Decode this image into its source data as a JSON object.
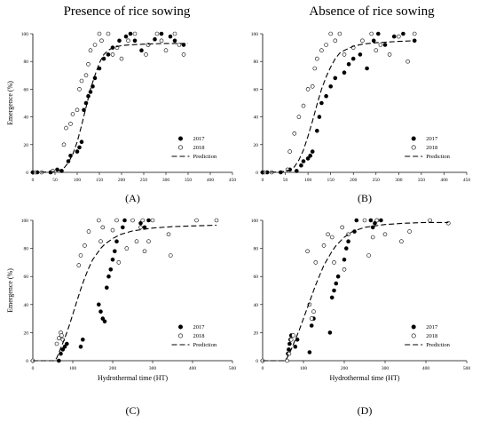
{
  "headers": {
    "left": "Presence of rice sowing",
    "right": "Absence of rice sowing"
  },
  "legend": {
    "s2017": "2017",
    "s2018": "2018",
    "prediction": "Prediction"
  },
  "chart_data": [
    {
      "type": "scatter",
      "panel": "(A)",
      "ylabel": "Emergence (%)",
      "xlabel": "",
      "xlim": [
        0,
        450
      ],
      "ylim": [
        0,
        100
      ],
      "xticks": [
        0,
        50,
        100,
        150,
        200,
        250,
        300,
        350,
        400,
        450
      ],
      "yticks": [
        0,
        20,
        40,
        60,
        80,
        100
      ],
      "grid": false,
      "legend_position": "right-bottom",
      "series": [
        {
          "name": "2017",
          "marker": "filled-circle",
          "x": [
            0,
            10,
            40,
            55,
            65,
            80,
            85,
            100,
            105,
            110,
            115,
            120,
            125,
            130,
            135,
            140,
            150,
            160,
            170,
            180,
            195,
            210,
            220,
            230,
            245,
            260,
            275,
            290,
            310,
            320,
            340
          ],
          "y": [
            0,
            0,
            0,
            2,
            1,
            8,
            12,
            15,
            18,
            22,
            45,
            50,
            55,
            58,
            62,
            68,
            75,
            82,
            85,
            90,
            95,
            98,
            100,
            95,
            88,
            92,
            96,
            100,
            98,
            95,
            92
          ]
        },
        {
          "name": "2018",
          "marker": "open-circle",
          "x": [
            5,
            20,
            45,
            70,
            75,
            85,
            90,
            100,
            105,
            110,
            120,
            125,
            130,
            140,
            150,
            155,
            170,
            180,
            190,
            200,
            215,
            230,
            255,
            260,
            280,
            290,
            300,
            320,
            330,
            340
          ],
          "y": [
            0,
            0,
            1,
            20,
            32,
            35,
            42,
            45,
            60,
            66,
            70,
            78,
            88,
            92,
            100,
            95,
            100,
            85,
            90,
            82,
            95,
            100,
            85,
            92,
            100,
            95,
            88,
            100,
            92,
            85
          ]
        },
        {
          "name": "Prediction",
          "line": "dashed",
          "x": [
            0,
            30,
            50,
            60,
            70,
            80,
            90,
            100,
            110,
            120,
            130,
            140,
            150,
            160,
            170,
            180,
            200,
            220,
            250,
            300,
            350
          ],
          "y": [
            0,
            0.2,
            0.8,
            1.5,
            3,
            7,
            13,
            22,
            34,
            47,
            60,
            70,
            79,
            85,
            88,
            90,
            91.5,
            92,
            92.5,
            93,
            93
          ]
        }
      ]
    },
    {
      "type": "scatter",
      "panel": "(B)",
      "ylabel": "",
      "xlabel": "",
      "xlim": [
        0,
        450
      ],
      "ylim": [
        0,
        100
      ],
      "xticks": [
        0,
        50,
        100,
        150,
        200,
        250,
        300,
        350,
        400,
        450
      ],
      "yticks": [
        0,
        20,
        40,
        60,
        80,
        100
      ],
      "grid": false,
      "legend_position": "right-bottom",
      "series": [
        {
          "name": "2017",
          "marker": "filled-circle",
          "x": [
            0,
            10,
            40,
            60,
            75,
            85,
            90,
            100,
            105,
            110,
            120,
            125,
            130,
            140,
            150,
            160,
            180,
            190,
            200,
            215,
            230,
            245,
            255,
            270,
            290,
            310,
            335
          ],
          "y": [
            0,
            0,
            0,
            2,
            1,
            5,
            8,
            10,
            12,
            15,
            30,
            40,
            50,
            55,
            62,
            68,
            72,
            78,
            82,
            85,
            75,
            95,
            100,
            92,
            98,
            100,
            95
          ]
        },
        {
          "name": "2018",
          "marker": "open-circle",
          "x": [
            5,
            20,
            55,
            60,
            70,
            80,
            90,
            100,
            110,
            115,
            120,
            130,
            140,
            150,
            160,
            170,
            180,
            200,
            220,
            240,
            250,
            260,
            280,
            300,
            320,
            335
          ],
          "y": [
            0,
            0,
            2,
            15,
            28,
            40,
            48,
            60,
            62,
            75,
            82,
            88,
            92,
            100,
            95,
            100,
            85,
            90,
            95,
            100,
            88,
            92,
            85,
            98,
            80,
            100
          ]
        },
        {
          "name": "Prediction",
          "line": "dashed",
          "x": [
            0,
            30,
            50,
            60,
            70,
            80,
            90,
            100,
            110,
            120,
            130,
            140,
            150,
            160,
            170,
            180,
            200,
            220,
            250,
            300,
            335
          ],
          "y": [
            0,
            0.2,
            0.8,
            2,
            4,
            9,
            16,
            26,
            37,
            49,
            60,
            69,
            76,
            82,
            86,
            88,
            91,
            92.5,
            93.5,
            94.5,
            95
          ]
        }
      ]
    },
    {
      "type": "scatter",
      "panel": "(C)",
      "ylabel": "Emergence (%)",
      "xlabel": "Hydrothermal time (HT)",
      "xlim": [
        0,
        500
      ],
      "ylim": [
        0,
        100
      ],
      "xticks": [
        0,
        100,
        200,
        300,
        400,
        500
      ],
      "yticks": [
        0,
        20,
        40,
        60,
        80,
        100
      ],
      "grid": false,
      "legend_position": "right-bottom",
      "series": [
        {
          "name": "2017",
          "marker": "filled-circle",
          "x": [
            65,
            70,
            75,
            80,
            85,
            120,
            125,
            165,
            170,
            175,
            180,
            185,
            190,
            195,
            200,
            205,
            210,
            225,
            230,
            270,
            280,
            290
          ],
          "y": [
            0,
            5,
            8,
            10,
            12,
            10,
            15,
            40,
            35,
            30,
            28,
            52,
            60,
            65,
            72,
            78,
            85,
            95,
            100,
            98,
            95,
            100
          ]
        },
        {
          "name": "2018",
          "marker": "open-circle",
          "x": [
            0,
            60,
            65,
            70,
            72,
            75,
            115,
            120,
            130,
            140,
            165,
            170,
            175,
            200,
            210,
            215,
            235,
            250,
            260,
            270,
            275,
            280,
            290,
            300,
            340,
            345,
            410,
            460
          ],
          "y": [
            0,
            12,
            16,
            20,
            18,
            15,
            68,
            75,
            82,
            92,
            100,
            85,
            95,
            93,
            100,
            70,
            80,
            100,
            85,
            95,
            100,
            78,
            85,
            100,
            90,
            75,
            100,
            100
          ]
        },
        {
          "name": "Prediction",
          "line": "dashed",
          "x": [
            0,
            55,
            60,
            70,
            80,
            90,
            100,
            110,
            120,
            130,
            140,
            150,
            160,
            170,
            180,
            200,
            220,
            250,
            300,
            350,
            400,
            460
          ],
          "y": [
            0,
            0,
            2,
            9,
            16,
            24,
            33,
            42,
            51,
            59,
            66,
            72,
            76,
            80,
            83,
            87,
            90,
            92.5,
            94.5,
            95.5,
            96,
            96.5
          ]
        }
      ]
    },
    {
      "type": "scatter",
      "panel": "(D)",
      "ylabel": "",
      "xlabel": "Hydrothermal time (HT)",
      "xlim": [
        0,
        500
      ],
      "ylim": [
        0,
        100
      ],
      "xticks": [
        0,
        100,
        200,
        300,
        400,
        500
      ],
      "yticks": [
        0,
        20,
        40,
        60,
        80,
        100
      ],
      "grid": false,
      "legend_position": "right-bottom",
      "series": [
        {
          "name": "2017",
          "marker": "filled-circle",
          "x": [
            62,
            64,
            66,
            68,
            70,
            80,
            85,
            115,
            120,
            125,
            165,
            170,
            175,
            180,
            185,
            200,
            205,
            210,
            225,
            230,
            265,
            270,
            275,
            280,
            290
          ],
          "y": [
            5,
            8,
            12,
            15,
            18,
            10,
            15,
            6,
            25,
            30,
            20,
            45,
            50,
            55,
            60,
            72,
            80,
            85,
            92,
            100,
            100,
            95,
            98,
            100,
            100
          ]
        },
        {
          "name": "2018",
          "marker": "open-circle",
          "x": [
            0,
            60,
            65,
            70,
            75,
            110,
            115,
            120,
            125,
            130,
            150,
            160,
            170,
            175,
            195,
            200,
            210,
            250,
            260,
            270,
            280,
            300,
            340,
            360,
            410,
            455
          ],
          "y": [
            0,
            0,
            5,
            15,
            18,
            78,
            40,
            30,
            35,
            70,
            82,
            90,
            88,
            70,
            95,
            65,
            90,
            100,
            75,
            88,
            100,
            90,
            85,
            92,
            100,
            98
          ]
        },
        {
          "name": "Prediction",
          "line": "dashed",
          "x": [
            0,
            55,
            60,
            70,
            80,
            90,
            100,
            110,
            120,
            130,
            140,
            150,
            160,
            170,
            180,
            200,
            220,
            250,
            300,
            350,
            400,
            455
          ],
          "y": [
            0,
            0,
            2,
            8,
            15,
            22,
            30,
            38,
            46,
            54,
            61,
            68,
            73,
            78,
            82,
            88,
            92,
            95,
            97,
            98,
            98.5,
            98.5
          ]
        }
      ]
    }
  ]
}
